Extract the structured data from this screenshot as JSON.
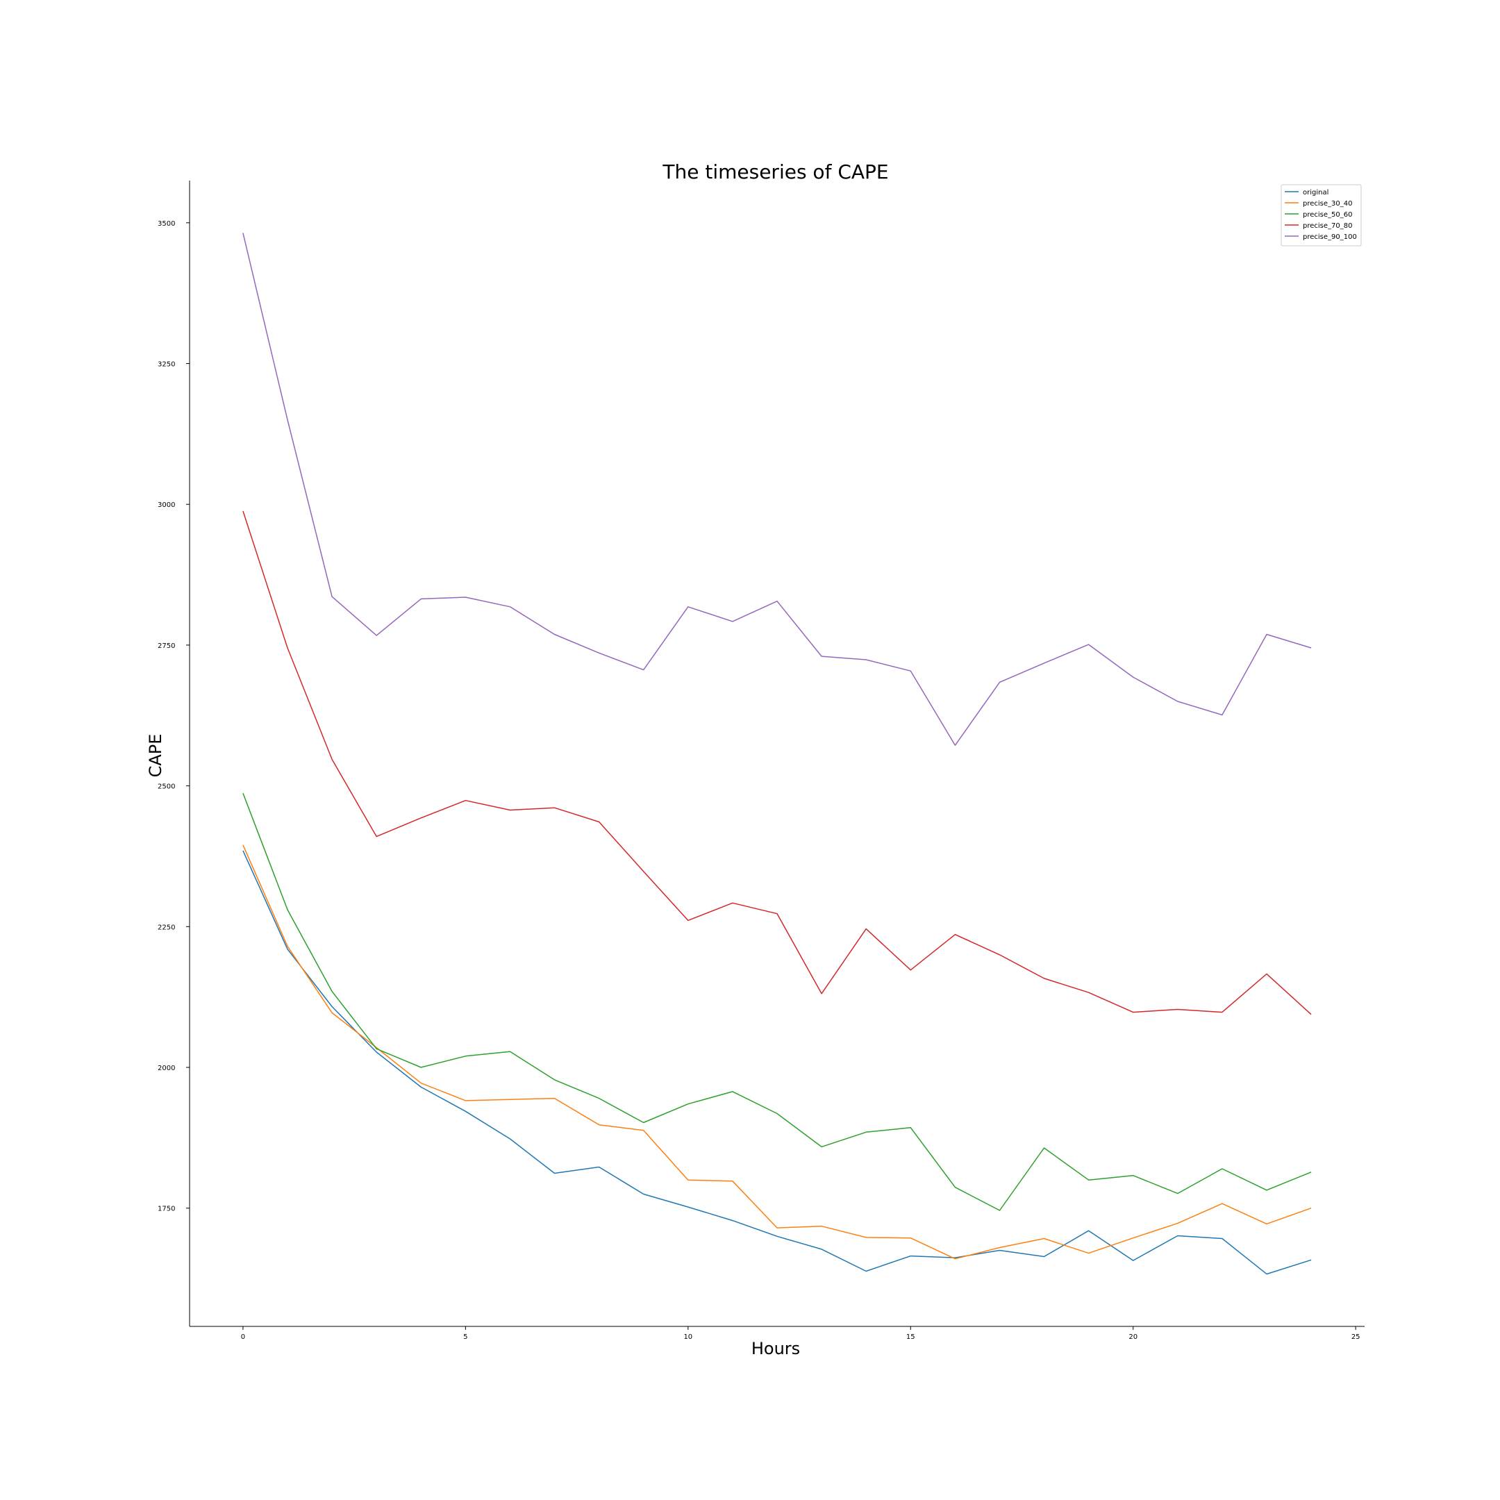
{
  "chart_data": {
    "type": "line",
    "title": "The timeseries of CAPE",
    "xlabel": "Hours",
    "ylabel": "CAPE",
    "xlim": [
      -1.2,
      25.2
    ],
    "ylim": [
      1540,
      3575
    ],
    "xticks": [
      0,
      5,
      10,
      15,
      20,
      25
    ],
    "yticks": [
      1750,
      2000,
      2250,
      2500,
      2750,
      3000,
      3250,
      3500
    ],
    "grid": false,
    "legend_position": "top-right",
    "x": [
      0,
      1,
      2,
      3,
      4,
      5,
      6,
      7,
      8,
      9,
      10,
      11,
      12,
      13,
      14,
      15,
      16,
      17,
      18,
      19,
      20,
      21,
      22,
      23,
      24
    ],
    "series": [
      {
        "name": "original",
        "color": "#1f77b4",
        "values": [
          2385,
          2210,
          2108,
          2027,
          1965,
          1922,
          1873,
          1812,
          1823,
          1775,
          1752,
          1728,
          1700,
          1677,
          1638,
          1665,
          1662,
          1675,
          1664,
          1710,
          1657,
          1701,
          1696,
          1633,
          1658
        ]
      },
      {
        "name": "precise_30_40",
        "color": "#ff7f0e",
        "values": [
          2395,
          2215,
          2097,
          2035,
          1972,
          1941,
          1943,
          1945,
          1898,
          1888,
          1800,
          1798,
          1715,
          1718,
          1698,
          1697,
          1660,
          1680,
          1696,
          1670,
          1697,
          1723,
          1758,
          1722,
          1750
        ]
      },
      {
        "name": "precise_50_60",
        "color": "#2ca02c",
        "values": [
          2487,
          2280,
          2135,
          2033,
          2000,
          2020,
          2028,
          1978,
          1945,
          1902,
          1935,
          1957,
          1918,
          1859,
          1885,
          1893,
          1787,
          1746,
          1857,
          1800,
          1808,
          1776,
          1820,
          1782,
          1814
        ]
      },
      {
        "name": "precise_70_80",
        "color": "#d62728",
        "values": [
          2988,
          2745,
          2547,
          2410,
          2443,
          2474,
          2457,
          2461,
          2436,
          2348,
          2261,
          2292,
          2273,
          2131,
          2246,
          2173,
          2236,
          2200,
          2158,
          2133,
          2098,
          2103,
          2098,
          2166,
          2094
        ]
      },
      {
        "name": "precise_90_100",
        "color": "#9467bd",
        "values": [
          3482,
          3150,
          2836,
          2767,
          2832,
          2835,
          2818,
          2769,
          2736,
          2706,
          2818,
          2792,
          2828,
          2730,
          2724,
          2704,
          2572,
          2684,
          2718,
          2751,
          2693,
          2650,
          2626,
          2769,
          2745
        ]
      }
    ]
  }
}
